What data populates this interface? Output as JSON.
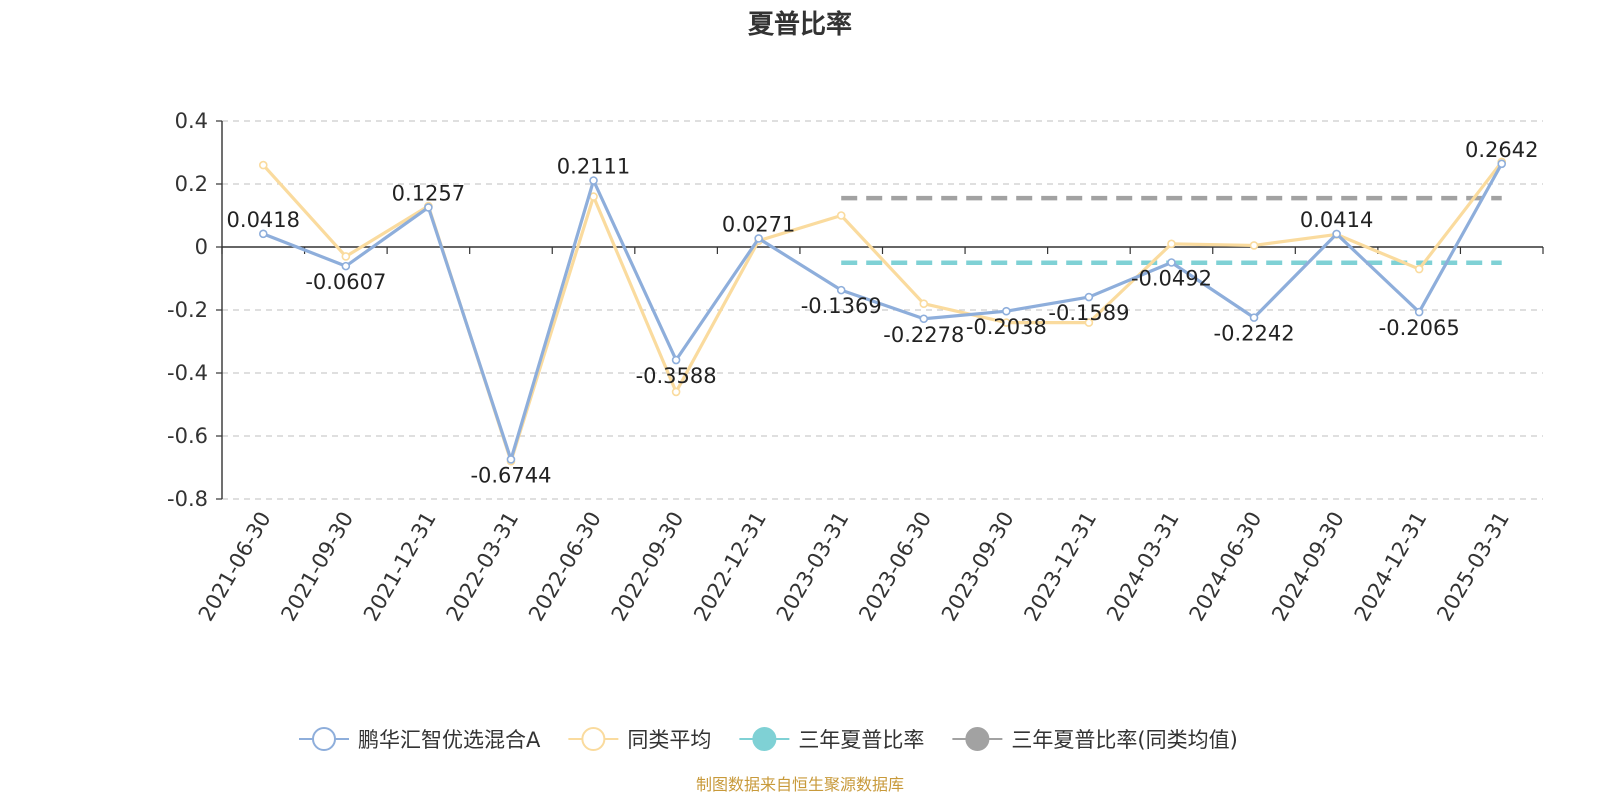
{
  "chart_data": {
    "type": "line",
    "title": "夏普比率",
    "categories": [
      "2021-06-30",
      "2021-09-30",
      "2021-12-31",
      "2022-03-31",
      "2022-06-30",
      "2022-09-30",
      "2022-12-31",
      "2023-03-31",
      "2023-06-30",
      "2023-09-30",
      "2023-12-31",
      "2024-03-31",
      "2024-06-30",
      "2024-09-30",
      "2024-12-31",
      "2025-03-31"
    ],
    "ylim": [
      -0.8,
      0.4
    ],
    "yticks": [
      "0.4",
      "0.2",
      "0",
      "-0.2",
      "-0.4",
      "-0.6",
      "-0.8"
    ],
    "grid": true,
    "legend_position": "bottom",
    "series": [
      {
        "name": "鹏华汇智优选混合A",
        "color": "#8eaedb",
        "values": [
          0.0418,
          -0.0607,
          0.1257,
          -0.6744,
          0.2111,
          -0.3588,
          0.0271,
          -0.1369,
          -0.2278,
          -0.2038,
          -0.1589,
          -0.0492,
          -0.2242,
          0.0414,
          -0.2065,
          0.2642
        ],
        "labels": [
          "0.0418",
          "-0.0607",
          "0.1257",
          "-0.6744",
          "0.2111",
          "-0.3588",
          "0.0271",
          "-0.1369",
          "-0.2278",
          "-0.2038",
          "-0.1589",
          "-0.0492",
          "-0.2242",
          "0.0414",
          "-0.2065",
          "0.2642"
        ]
      },
      {
        "name": "同类平均",
        "color": "#fadb9e",
        "values": [
          0.26,
          -0.03,
          0.13,
          -0.68,
          0.16,
          -0.46,
          0.02,
          0.1,
          -0.18,
          -0.24,
          -0.24,
          0.01,
          0.005,
          0.04,
          -0.07,
          0.27
        ]
      }
    ],
    "reference_lines": [
      {
        "name": "三年夏普比率",
        "color": "#7fd1d5",
        "value": -0.05,
        "from": "2023-03-31",
        "to": "2025-03-31"
      },
      {
        "name": "三年夏普比率(同类均值)",
        "color": "#a2a2a2",
        "value": 0.155,
        "from": "2023-03-31",
        "to": "2025-03-31"
      }
    ]
  },
  "legend": [
    {
      "name": "鹏华汇智优选混合A",
      "color": "#8eaedb",
      "marker": "circle-hollow"
    },
    {
      "name": "同类平均",
      "color": "#fadb9e",
      "marker": "circle-hollow"
    },
    {
      "name": "三年夏普比率",
      "color": "#7fd1d5",
      "marker": "circle-filled"
    },
    {
      "name": "三年夏普比率(同类均值)",
      "color": "#a2a2a2",
      "marker": "circle-filled"
    }
  ],
  "source": {
    "text": "制图数据来自恒生聚源数据库",
    "color": "#c89a3b"
  }
}
